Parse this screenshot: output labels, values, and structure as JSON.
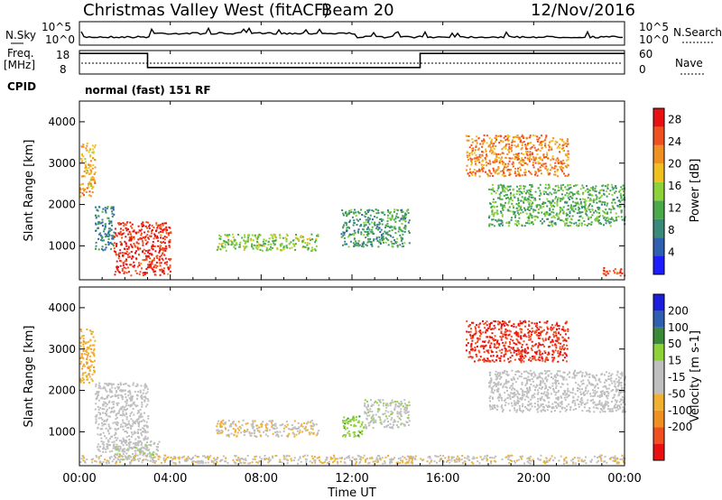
{
  "header": {
    "station": "Christmas Valley West (fitACF)",
    "beam": "Beam 20",
    "date": "12/Nov/2016"
  },
  "noise_panel": {
    "left_label": "N.Sky",
    "right_label": "N.Search",
    "ticks": [
      "10^5",
      "10^0"
    ]
  },
  "freq_panel": {
    "left_label_1": "Freq.",
    "left_label_2": "[MHz]",
    "right_label": "Nave",
    "left_ticks": [
      "18",
      "8"
    ],
    "right_ticks": [
      "60",
      "0"
    ],
    "freq_mhz_steps": [
      {
        "start": "00:00",
        "end": "03:00",
        "value": 16
      },
      {
        "start": "03:00",
        "end": "15:00",
        "value": 10
      },
      {
        "start": "15:00",
        "end": "24:00",
        "value": 16
      }
    ]
  },
  "cpid": {
    "label": "CPID",
    "value": "normal (fast) 151 RF"
  },
  "x_axis": {
    "label": "Time UT",
    "ticks": [
      "00:00",
      "04:00",
      "08:00",
      "12:00",
      "16:00",
      "20:00",
      "00:00"
    ]
  },
  "colors": {
    "power_scale": [
      "#1c1cff",
      "#2f5fb0",
      "#3a8a7a",
      "#4aaa4a",
      "#8ed23a",
      "#f0c020",
      "#f09020",
      "#f05020",
      "#e81010"
    ],
    "velocity_scale": [
      "#e81010",
      "#f05020",
      "#f09020",
      "#f0b030",
      "#bfbfbf",
      "#bfbfbf",
      "#8ed23a",
      "#3a8a3a",
      "#2f5fb0",
      "#1c1cdd"
    ]
  },
  "chart_data": [
    {
      "type": "heatmap",
      "quantity": "Power",
      "ylabel": "Slant Range [km]",
      "xlabel": "Time UT",
      "xlim": [
        "00:00",
        "24:00"
      ],
      "ylim": [
        180,
        4500
      ],
      "yticks": [
        1000,
        2000,
        3000,
        4000
      ],
      "colorbar": {
        "label": "Power [dB]",
        "range": [
          0,
          30
        ],
        "ticks": [
          4,
          8,
          12,
          16,
          20,
          24,
          28
        ]
      },
      "regions": [
        {
          "t": [
            "00:00",
            "00:40"
          ],
          "range_km": [
            2200,
            3500
          ],
          "value": 20
        },
        {
          "t": [
            "00:40",
            "01:30"
          ],
          "range_km": [
            900,
            2000
          ],
          "value": 8
        },
        {
          "t": [
            "01:30",
            "04:00"
          ],
          "range_km": [
            300,
            1600
          ],
          "value": 27
        },
        {
          "t": [
            "06:00",
            "10:30"
          ],
          "range_km": [
            900,
            1300
          ],
          "value": 14
        },
        {
          "t": [
            "11:30",
            "14:30"
          ],
          "range_km": [
            1000,
            1900
          ],
          "value": 10
        },
        {
          "t": [
            "17:00",
            "21:30"
          ],
          "range_km": [
            2700,
            3700
          ],
          "value": 22
        },
        {
          "t": [
            "18:00",
            "24:00"
          ],
          "range_km": [
            1500,
            2500
          ],
          "value": 12
        },
        {
          "t": [
            "23:00",
            "24:00"
          ],
          "range_km": [
            300,
            500
          ],
          "value": 26
        }
      ]
    },
    {
      "type": "heatmap",
      "quantity": "Velocity",
      "ylabel": "Slant Range [km]",
      "xlabel": "Time UT",
      "xlim": [
        "00:00",
        "24:00"
      ],
      "ylim": [
        180,
        4500
      ],
      "yticks": [
        1000,
        2000,
        3000,
        4000
      ],
      "colorbar": {
        "label": "Velocity [m s-1]",
        "range": [
          -250,
          250
        ],
        "ticks": [
          200,
          100,
          50,
          15,
          -15,
          -50,
          -100,
          -200
        ]
      },
      "regions": [
        {
          "t": [
            "00:00",
            "00:40"
          ],
          "range_km": [
            2200,
            3500
          ],
          "value": -80
        },
        {
          "t": [
            "00:40",
            "03:00"
          ],
          "range_km": [
            500,
            2200
          ],
          "value": 0
        },
        {
          "t": [
            "01:30",
            "03:30"
          ],
          "range_km": [
            300,
            800
          ],
          "value": 30
        },
        {
          "t": [
            "06:00",
            "10:30"
          ],
          "range_km": [
            900,
            1300
          ],
          "value": -40
        },
        {
          "t": [
            "11:30",
            "12:30"
          ],
          "range_km": [
            900,
            1400
          ],
          "value": 80
        },
        {
          "t": [
            "12:30",
            "14:30"
          ],
          "range_km": [
            1100,
            1800
          ],
          "value": 30
        },
        {
          "t": [
            "17:00",
            "21:30"
          ],
          "range_km": [
            2700,
            3700
          ],
          "value": -200
        },
        {
          "t": [
            "18:00",
            "24:00"
          ],
          "range_km": [
            1500,
            2500
          ],
          "value": 0
        },
        {
          "t": [
            "00:00",
            "24:00"
          ],
          "range_km": [
            250,
            450
          ],
          "value": -40
        }
      ]
    }
  ]
}
